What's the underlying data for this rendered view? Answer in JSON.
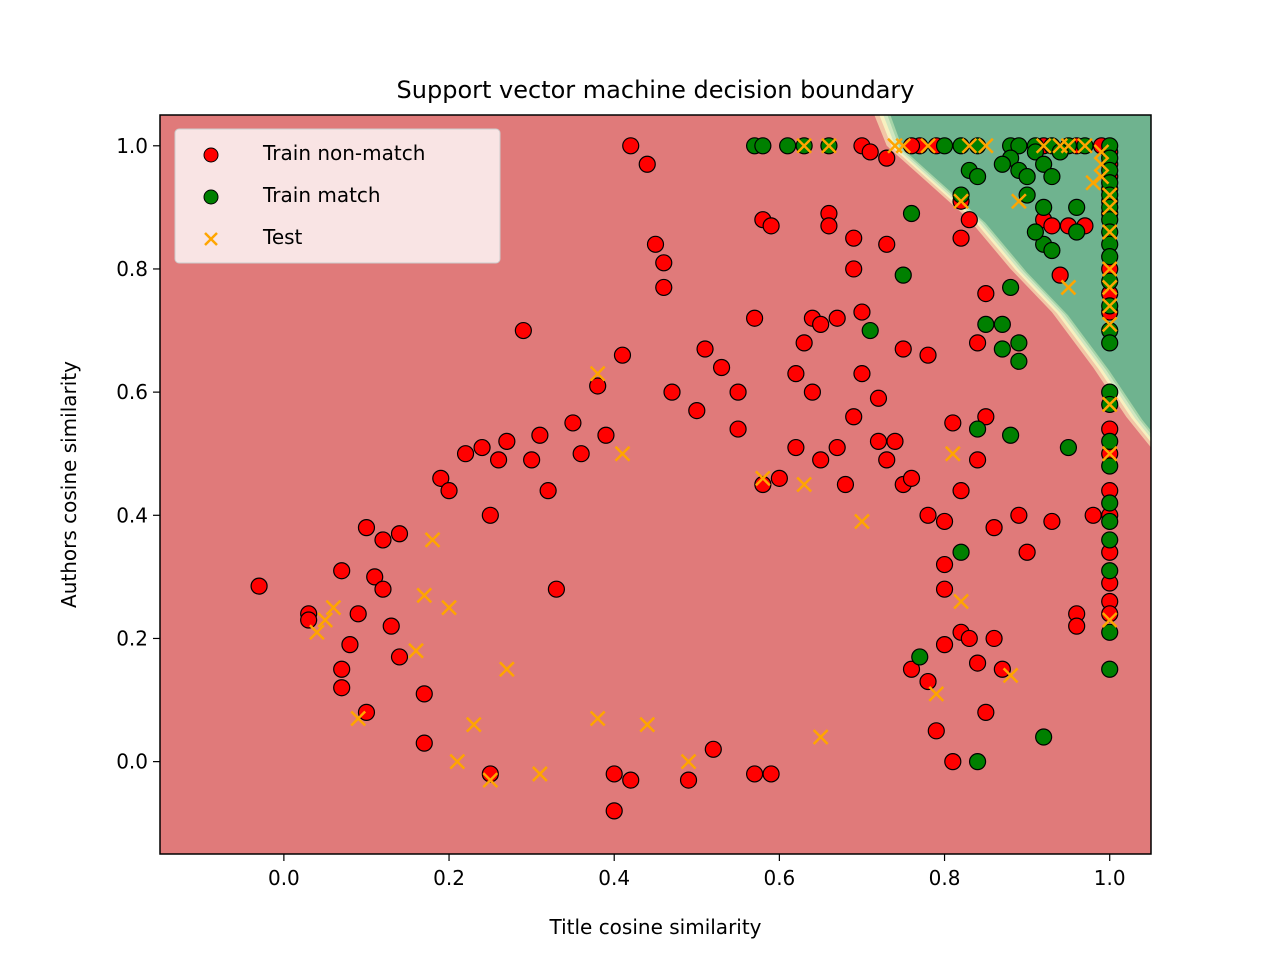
{
  "chart_data": {
    "type": "scatter",
    "title": "Support vector machine decision boundary",
    "xlabel": "Title cosine similarity",
    "ylabel": "Authors cosine similarity",
    "xlim": [
      -0.15,
      1.05
    ],
    "ylim": [
      -0.15,
      1.05
    ],
    "x_ticks": [
      "0.0",
      "0.2",
      "0.4",
      "0.6",
      "0.8",
      "1.0"
    ],
    "y_ticks": [
      "0.0",
      "0.2",
      "0.4",
      "0.6",
      "0.8",
      "1.0"
    ],
    "grid": false,
    "legend_position": "upper-left",
    "decision_regions": {
      "non_match_color": "#e07a7a",
      "match_color": "#6fb38f",
      "boundary_colors": [
        "#f2c6a6",
        "#f7f0c0",
        "#cfe6c0",
        "#a6d4a8"
      ],
      "boundary_line": [
        [
          0.715,
          1.05
        ],
        [
          0.73,
          1.0
        ],
        [
          0.78,
          0.94
        ],
        [
          0.83,
          0.88
        ],
        [
          0.88,
          0.8
        ],
        [
          0.93,
          0.73
        ],
        [
          0.98,
          0.64
        ],
        [
          1.02,
          0.56
        ],
        [
          1.05,
          0.51
        ]
      ]
    },
    "colors": {
      "non_match": "#ff0000",
      "match": "#008000",
      "test": "#ffa500",
      "edge": "#000000"
    },
    "series": [
      {
        "name": "Train non-match",
        "marker": "circle",
        "points": [
          [
            -0.03,
            0.285
          ],
          [
            0.03,
            0.24
          ],
          [
            0.03,
            0.23
          ],
          [
            0.07,
            0.31
          ],
          [
            0.07,
            0.15
          ],
          [
            0.07,
            0.12
          ],
          [
            0.1,
            0.08
          ],
          [
            0.1,
            0.38
          ],
          [
            0.11,
            0.3
          ],
          [
            0.12,
            0.36
          ],
          [
            0.12,
            0.28
          ],
          [
            0.13,
            0.22
          ],
          [
            0.14,
            0.37
          ],
          [
            0.14,
            0.17
          ],
          [
            0.09,
            0.24
          ],
          [
            0.08,
            0.19
          ],
          [
            0.17,
            0.11
          ],
          [
            0.17,
            0.03
          ],
          [
            0.19,
            0.46
          ],
          [
            0.2,
            0.44
          ],
          [
            0.22,
            0.5
          ],
          [
            0.24,
            0.51
          ],
          [
            0.25,
            0.4
          ],
          [
            0.25,
            -0.02
          ],
          [
            0.27,
            0.52
          ],
          [
            0.26,
            0.49
          ],
          [
            0.29,
            0.7
          ],
          [
            0.3,
            0.49
          ],
          [
            0.31,
            0.53
          ],
          [
            0.32,
            0.44
          ],
          [
            0.33,
            0.28
          ],
          [
            0.35,
            0.55
          ],
          [
            0.36,
            0.5
          ],
          [
            0.38,
            0.61
          ],
          [
            0.39,
            0.53
          ],
          [
            0.41,
            0.66
          ],
          [
            0.42,
            1.0
          ],
          [
            0.44,
            0.97
          ],
          [
            0.45,
            0.84
          ],
          [
            0.46,
            0.81
          ],
          [
            0.46,
            0.77
          ],
          [
            0.47,
            0.6
          ],
          [
            0.5,
            0.57
          ],
          [
            0.51,
            0.67
          ],
          [
            0.53,
            0.64
          ],
          [
            0.55,
            0.54
          ],
          [
            0.55,
            0.6
          ],
          [
            0.57,
            0.72
          ],
          [
            0.58,
            0.88
          ],
          [
            0.59,
            0.87
          ],
          [
            0.62,
            0.63
          ],
          [
            0.63,
            0.68
          ],
          [
            0.64,
            0.6
          ],
          [
            0.64,
            0.72
          ],
          [
            0.65,
            0.71
          ],
          [
            0.66,
            0.89
          ],
          [
            0.66,
            0.87
          ],
          [
            0.67,
            0.72
          ],
          [
            0.69,
            0.85
          ],
          [
            0.69,
            0.8
          ],
          [
            0.7,
            0.73
          ],
          [
            0.7,
            0.63
          ],
          [
            0.69,
            0.56
          ],
          [
            0.73,
            0.84
          ],
          [
            0.72,
            0.59
          ],
          [
            0.74,
            0.52
          ],
          [
            0.75,
            0.67
          ],
          [
            0.75,
            0.45
          ],
          [
            0.78,
            0.66
          ],
          [
            0.82,
            0.91
          ],
          [
            0.82,
            0.85
          ],
          [
            0.83,
            0.88
          ],
          [
            0.84,
            0.68
          ],
          [
            0.85,
            0.76
          ],
          [
            0.81,
            0.55
          ],
          [
            0.85,
            0.56
          ],
          [
            0.84,
            0.49
          ],
          [
            0.82,
            0.44
          ],
          [
            0.86,
            0.38
          ],
          [
            0.85,
            0.08
          ],
          [
            0.81,
            0.0
          ],
          [
            0.87,
            0.15
          ],
          [
            0.89,
            0.4
          ],
          [
            0.9,
            0.34
          ],
          [
            0.93,
            0.39
          ],
          [
            0.92,
            0.88
          ],
          [
            0.93,
            0.87
          ],
          [
            0.95,
            0.87
          ],
          [
            0.94,
            0.79
          ],
          [
            0.97,
            0.87
          ],
          [
            0.98,
            0.4
          ],
          [
            0.96,
            0.24
          ],
          [
            0.96,
            0.22
          ],
          [
            0.7,
            1.0
          ],
          [
            0.71,
            0.99
          ],
          [
            0.73,
            0.98
          ],
          [
            0.77,
            1.0
          ],
          [
            0.79,
            1.0
          ],
          [
            0.76,
            1.0
          ],
          [
            0.92,
            1.0
          ],
          [
            0.96,
            1.0
          ],
          [
            0.99,
            1.0
          ],
          [
            1.0,
            0.99
          ],
          [
            1.0,
            0.97
          ],
          [
            1.0,
            0.95
          ],
          [
            1.0,
            0.93
          ],
          [
            1.0,
            0.91
          ],
          [
            1.0,
            0.89
          ],
          [
            1.0,
            0.8
          ],
          [
            1.0,
            0.76
          ],
          [
            1.0,
            0.73
          ],
          [
            1.0,
            0.54
          ],
          [
            1.0,
            0.5
          ],
          [
            1.0,
            0.44
          ],
          [
            1.0,
            0.4
          ],
          [
            1.0,
            0.34
          ],
          [
            1.0,
            0.29
          ],
          [
            1.0,
            0.26
          ],
          [
            1.0,
            0.24
          ],
          [
            0.4,
            -0.08
          ],
          [
            0.4,
            -0.02
          ],
          [
            0.42,
            -0.03
          ],
          [
            0.57,
            -0.02
          ],
          [
            0.59,
            -0.02
          ],
          [
            0.49,
            -0.03
          ],
          [
            0.52,
            0.02
          ],
          [
            0.58,
            0.45
          ],
          [
            0.6,
            0.46
          ],
          [
            0.62,
            0.51
          ],
          [
            0.65,
            0.49
          ],
          [
            0.67,
            0.51
          ],
          [
            0.68,
            0.45
          ],
          [
            0.72,
            0.52
          ],
          [
            0.73,
            0.49
          ],
          [
            0.76,
            0.46
          ],
          [
            0.78,
            0.4
          ],
          [
            0.8,
            0.39
          ],
          [
            0.8,
            0.32
          ],
          [
            0.8,
            0.28
          ],
          [
            0.82,
            0.21
          ],
          [
            0.8,
            0.19
          ],
          [
            0.83,
            0.2
          ],
          [
            0.84,
            0.16
          ],
          [
            0.86,
            0.2
          ],
          [
            0.78,
            0.13
          ],
          [
            0.76,
            0.15
          ],
          [
            0.79,
            0.05
          ]
        ]
      },
      {
        "name": "Train match",
        "marker": "circle",
        "points": [
          [
            0.57,
            1.0
          ],
          [
            0.58,
            1.0
          ],
          [
            0.61,
            1.0
          ],
          [
            0.63,
            1.0
          ],
          [
            0.66,
            1.0
          ],
          [
            0.8,
            1.0
          ],
          [
            0.82,
            1.0
          ],
          [
            0.84,
            1.0
          ],
          [
            0.88,
            1.0
          ],
          [
            0.89,
            1.0
          ],
          [
            0.91,
            1.0
          ],
          [
            0.93,
            1.0
          ],
          [
            0.95,
            1.0
          ],
          [
            0.97,
            1.0
          ],
          [
            0.88,
            0.98
          ],
          [
            0.89,
            0.96
          ],
          [
            0.9,
            0.95
          ],
          [
            0.9,
            0.92
          ],
          [
            0.91,
            0.99
          ],
          [
            0.92,
            0.97
          ],
          [
            0.93,
            0.95
          ],
          [
            0.94,
            0.99
          ],
          [
            0.83,
            0.96
          ],
          [
            0.84,
            0.95
          ],
          [
            0.87,
            0.97
          ],
          [
            0.82,
            0.92
          ],
          [
            0.76,
            0.89
          ],
          [
            0.75,
            0.79
          ],
          [
            0.71,
            0.7
          ],
          [
            0.92,
            0.84
          ],
          [
            0.93,
            0.83
          ],
          [
            0.91,
            0.86
          ],
          [
            0.92,
            0.9
          ],
          [
            0.96,
            0.9
          ],
          [
            0.96,
            0.86
          ],
          [
            0.88,
            0.77
          ],
          [
            0.85,
            0.71
          ],
          [
            0.87,
            0.71
          ],
          [
            0.87,
            0.67
          ],
          [
            0.89,
            0.65
          ],
          [
            0.89,
            0.68
          ],
          [
            0.84,
            0.54
          ],
          [
            0.88,
            0.53
          ],
          [
            0.95,
            0.51
          ],
          [
            0.82,
            0.34
          ],
          [
            0.77,
            0.17
          ],
          [
            0.84,
            -0.0
          ],
          [
            0.92,
            0.04
          ],
          [
            1.0,
            1.0
          ],
          [
            1.0,
            0.98
          ],
          [
            1.0,
            0.96
          ],
          [
            1.0,
            0.94
          ],
          [
            1.0,
            0.92
          ],
          [
            1.0,
            0.9
          ],
          [
            1.0,
            0.88
          ],
          [
            1.0,
            0.86
          ],
          [
            1.0,
            0.84
          ],
          [
            1.0,
            0.82
          ],
          [
            1.0,
            0.78
          ],
          [
            1.0,
            0.74
          ],
          [
            1.0,
            0.7
          ],
          [
            1.0,
            0.68
          ],
          [
            1.0,
            0.6
          ],
          [
            1.0,
            0.58
          ],
          [
            1.0,
            0.52
          ],
          [
            1.0,
            0.48
          ],
          [
            1.0,
            0.42
          ],
          [
            1.0,
            0.39
          ],
          [
            1.0,
            0.36
          ],
          [
            1.0,
            0.31
          ],
          [
            1.0,
            0.21
          ],
          [
            1.0,
            0.15
          ]
        ]
      },
      {
        "name": "Test",
        "marker": "x",
        "points": [
          [
            0.04,
            0.21
          ],
          [
            0.05,
            0.23
          ],
          [
            0.06,
            0.25
          ],
          [
            0.09,
            0.07
          ],
          [
            0.17,
            0.27
          ],
          [
            0.18,
            0.36
          ],
          [
            0.21,
            0.0
          ],
          [
            0.25,
            -0.03
          ],
          [
            0.31,
            -0.02
          ],
          [
            0.16,
            0.18
          ],
          [
            0.2,
            0.25
          ],
          [
            0.23,
            0.06
          ],
          [
            0.27,
            0.15
          ],
          [
            0.38,
            0.63
          ],
          [
            0.41,
            0.5
          ],
          [
            0.58,
            0.46
          ],
          [
            0.63,
            0.45
          ],
          [
            0.7,
            0.39
          ],
          [
            0.81,
            0.5
          ],
          [
            0.82,
            0.91
          ],
          [
            0.89,
            0.91
          ],
          [
            0.95,
            0.77
          ],
          [
            0.88,
            0.14
          ],
          [
            0.79,
            0.11
          ],
          [
            0.82,
            0.26
          ],
          [
            0.65,
            0.04
          ],
          [
            0.49,
            0.0
          ],
          [
            0.44,
            0.06
          ],
          [
            0.38,
            0.07
          ],
          [
            0.63,
            1.0
          ],
          [
            0.66,
            1.0
          ],
          [
            0.74,
            1.0
          ],
          [
            0.75,
            1.0
          ],
          [
            0.78,
            1.0
          ],
          [
            0.83,
            1.0
          ],
          [
            0.85,
            1.0
          ],
          [
            0.92,
            1.0
          ],
          [
            0.94,
            1.0
          ],
          [
            0.95,
            1.0
          ],
          [
            0.97,
            1.0
          ],
          [
            0.99,
            0.99
          ],
          [
            0.99,
            0.97
          ],
          [
            0.99,
            0.95
          ],
          [
            0.98,
            0.94
          ],
          [
            1.0,
            0.92
          ],
          [
            1.0,
            0.9
          ],
          [
            1.0,
            0.86
          ],
          [
            1.0,
            0.8
          ],
          [
            1.0,
            0.77
          ],
          [
            1.0,
            0.74
          ],
          [
            1.0,
            0.71
          ],
          [
            1.0,
            0.58
          ],
          [
            1.0,
            0.5
          ],
          [
            1.0,
            0.23
          ]
        ]
      }
    ]
  }
}
